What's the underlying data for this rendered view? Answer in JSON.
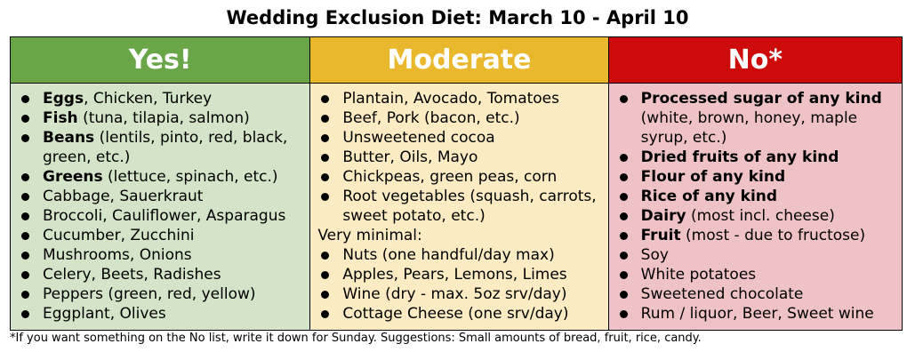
{
  "title": "Wedding Exclusion Diet: March 10 - April 10",
  "columns": [
    {
      "header": "Yes!",
      "items": [
        {
          "bold": "Eggs",
          "text": ", Chicken, Turkey"
        },
        {
          "bold": "Fish",
          "text": " (tuna, tilapia, salmon)"
        },
        {
          "bold": "Beans",
          "text": " (lentils, pinto, red, black, green, etc.)"
        },
        {
          "bold": "Greens",
          "text": " (lettuce, spinach, etc.)"
        },
        {
          "bold": "",
          "text": "Cabbage, Sauerkraut"
        },
        {
          "bold": "",
          "text": "Broccoli, Cauliflower, Asparagus"
        },
        {
          "bold": "",
          "text": "Cucumber, Zucchini"
        },
        {
          "bold": "",
          "text": "Mushrooms, Onions"
        },
        {
          "bold": "",
          "text": "Celery, Beets, Radishes"
        },
        {
          "bold": "",
          "text": "Peppers (green, red, yellow)"
        },
        {
          "bold": "",
          "text": "Eggplant, Olives"
        }
      ]
    },
    {
      "header": "Moderate",
      "items": [
        {
          "bold": "",
          "text": "Plantain, Avocado, Tomatoes"
        },
        {
          "bold": "",
          "text": "Beef, Pork (bacon, etc.)"
        },
        {
          "bold": "",
          "text": "Unsweetened cocoa"
        },
        {
          "bold": "",
          "text": "Butter, Oils, Mayo"
        },
        {
          "bold": "",
          "text": "Chickpeas, green peas, corn"
        },
        {
          "bold": "",
          "text": "Root vegetables (squash, carrots, sweet potato, etc.)"
        }
      ],
      "subheading": "Very minimal:",
      "items2": [
        {
          "bold": "",
          "text": "Nuts (one handful/day max)"
        },
        {
          "bold": "",
          "text": "Apples, Pears, Lemons, Limes"
        },
        {
          "bold": "",
          "text": "Wine (dry - max. 5oz srv/day)"
        },
        {
          "bold": "",
          "text": "Cottage Cheese (one srv/day)"
        }
      ]
    },
    {
      "header": "No*",
      "items": [
        {
          "bold": "Processed sugar of any kind",
          "text": " (white, brown, honey, maple syrup, etc.)"
        },
        {
          "bold": "Dried fruits of any kind",
          "text": ""
        },
        {
          "bold": "Flour of any kind",
          "text": ""
        },
        {
          "bold": "Rice of any kind",
          "text": ""
        },
        {
          "bold": "Dairy",
          "text": " (most incl. cheese)"
        },
        {
          "bold": "Fruit",
          "text": " (most - due to fructose)"
        },
        {
          "bold": "",
          "text": "Soy"
        },
        {
          "bold": "",
          "text": "White potatoes"
        },
        {
          "bold": "",
          "text": "Sweetened chocolate"
        },
        {
          "bold": "",
          "text": "Rum / liquor, Beer, Sweet wine"
        }
      ]
    }
  ],
  "footnote": "*If you want something on the No list, write it down for Sunday. Suggestions: Small amounts of bread, fruit, rice, candy."
}
